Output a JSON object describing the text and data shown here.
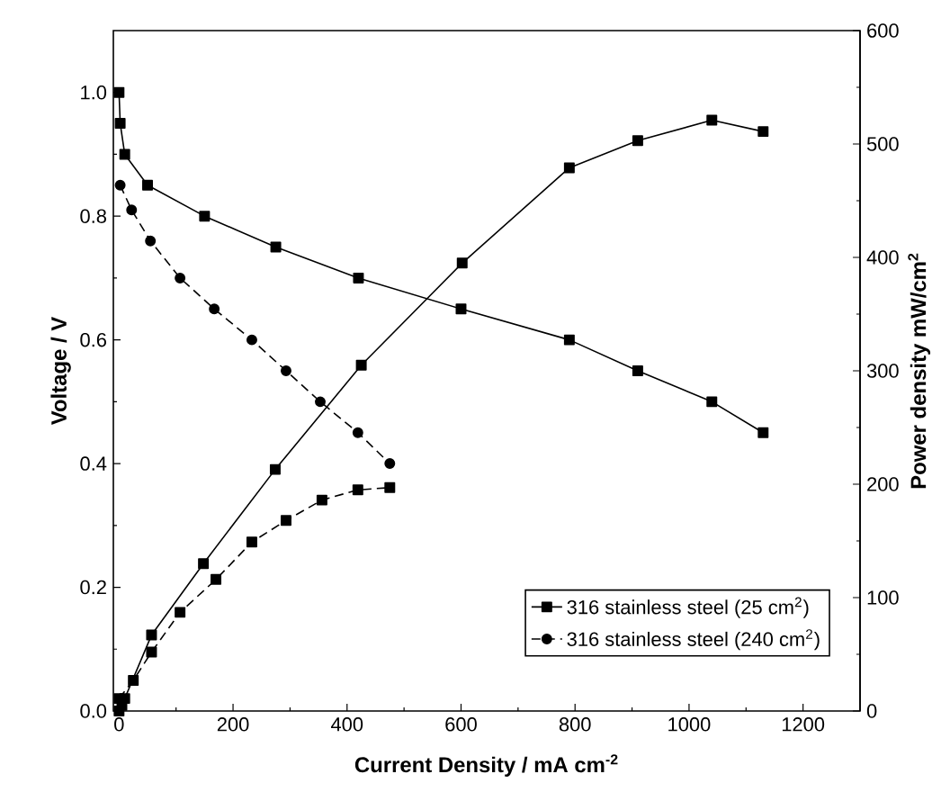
{
  "chart_data": {
    "type": "line",
    "xlabel": "Current Density / mA cm$^{-2}$",
    "ylabel": "Voltage / V",
    "y2label": "Power density mW/cm$^{2}$",
    "xlim": [
      -10,
      1300
    ],
    "ylim": [
      0,
      1.1
    ],
    "y2lim": [
      0,
      600
    ],
    "xticks": [
      0,
      200,
      400,
      600,
      800,
      1000,
      1200
    ],
    "yticks": [
      {
        "value": 0,
        "label": "0.0"
      },
      {
        "value": 0.2,
        "label": "0.2"
      },
      {
        "value": 0.4,
        "label": "0.4"
      },
      {
        "value": 0.6,
        "label": "0.6"
      },
      {
        "value": 0.8,
        "label": "0.8"
      },
      {
        "value": 1.0,
        "label": "1.0"
      }
    ],
    "y2ticks": [
      0,
      100,
      200,
      300,
      400,
      500,
      600
    ],
    "legend": "bottom right",
    "series": [
      {
        "name": "316 stainless steel (25 cm$^{2}$)",
        "color": "#000000",
        "axis": "y",
        "marker": "square",
        "line_style": "solid",
        "x": [
          0,
          2,
          10,
          50,
          150,
          275,
          420,
          600,
          790,
          910,
          1040,
          1130
        ],
        "values": [
          1.0,
          0.95,
          0.9,
          0.85,
          0.8,
          0.75,
          0.7,
          0.65,
          0.6,
          0.55,
          0.5,
          0.45
        ]
      },
      {
        "name": "316 stainless steel (240 cm$^{2}$)",
        "color": "#000000",
        "axis": "y",
        "marker": "circle",
        "line_style": "dashed",
        "x": [
          2,
          22,
          55,
          107,
          167,
          233,
          293,
          353,
          419,
          475
        ],
        "values": [
          0.85,
          0.81,
          0.76,
          0.7,
          0.65,
          0.6,
          0.55,
          0.5,
          0.45,
          0.4
        ]
      },
      {
        "color": "#000000",
        "axis": "y2",
        "marker": "square",
        "line_style": "solid",
        "x": [
          0,
          5,
          10,
          28,
          57,
          148,
          274,
          425,
          602,
          790,
          910,
          1040,
          1130
        ],
        "values": [
          0,
          5,
          11,
          null,
          67,
          130,
          213,
          305,
          395,
          479,
          503,
          521,
          511
        ]
      },
      {
        "color": "#000000",
        "axis": "y2",
        "marker": "square",
        "line_style": "dashed",
        "x": [
          0,
          25,
          57,
          107,
          170,
          233,
          293,
          356,
          419,
          475
        ],
        "values": [
          11,
          27,
          52,
          87,
          116,
          149,
          168,
          186,
          195,
          197
        ]
      }
    ]
  }
}
